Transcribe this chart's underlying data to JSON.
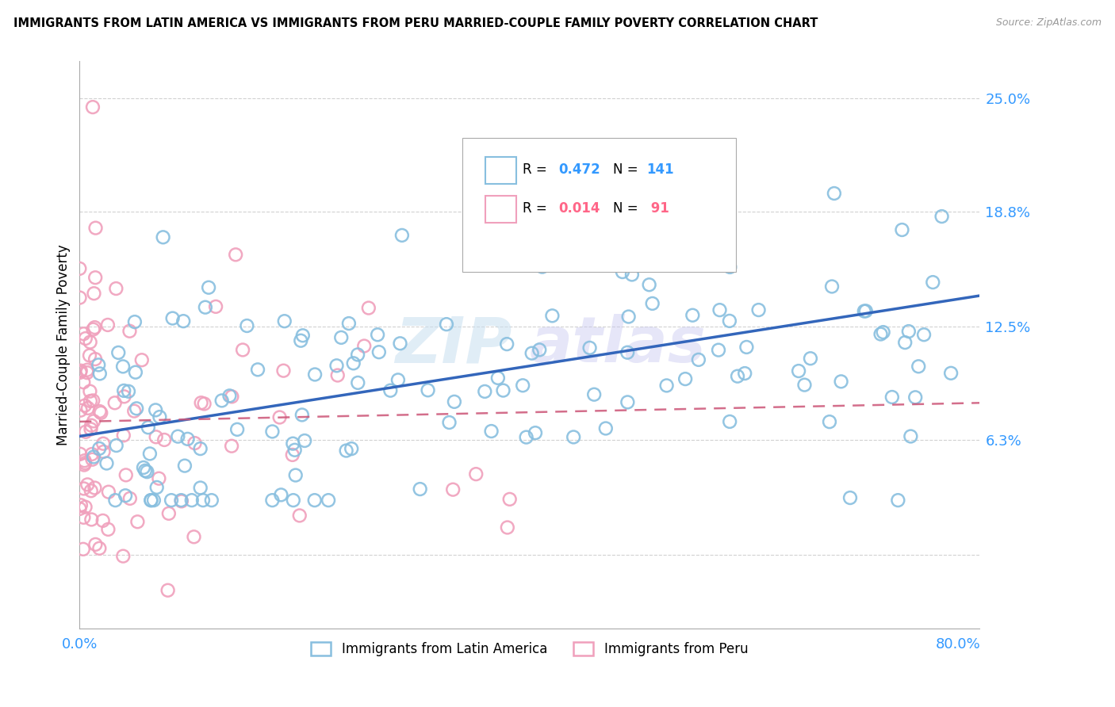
{
  "title": "IMMIGRANTS FROM LATIN AMERICA VS IMMIGRANTS FROM PERU MARRIED-COUPLE FAMILY POVERTY CORRELATION CHART",
  "source": "Source: ZipAtlas.com",
  "ylabel": "Married-Couple Family Poverty",
  "xlim": [
    0.0,
    0.82
  ],
  "ylim": [
    -0.04,
    0.27
  ],
  "yticks": [
    0.0,
    0.063,
    0.125,
    0.188,
    0.25
  ],
  "ytick_labels": [
    "",
    "6.3%",
    "12.5%",
    "18.8%",
    "25.0%"
  ],
  "xtick_labels": [
    "0.0%",
    "80.0%"
  ],
  "xticks": [
    0.0,
    0.8
  ],
  "gridline_color": "#cccccc",
  "watermark": "ZIPAtlas",
  "blue_color": "#88bfdf",
  "pink_color": "#f0a0bc",
  "blue_line_color": "#3366bb",
  "pink_line_color": "#cc5577",
  "R_blue": 0.472,
  "N_blue": 141,
  "R_pink": 0.014,
  "N_pink": 91,
  "legend_label_blue": "Immigrants from Latin America",
  "legend_label_pink": "Immigrants from Peru",
  "blue_text_color": "#3399ff",
  "pink_text_color": "#ff6688"
}
